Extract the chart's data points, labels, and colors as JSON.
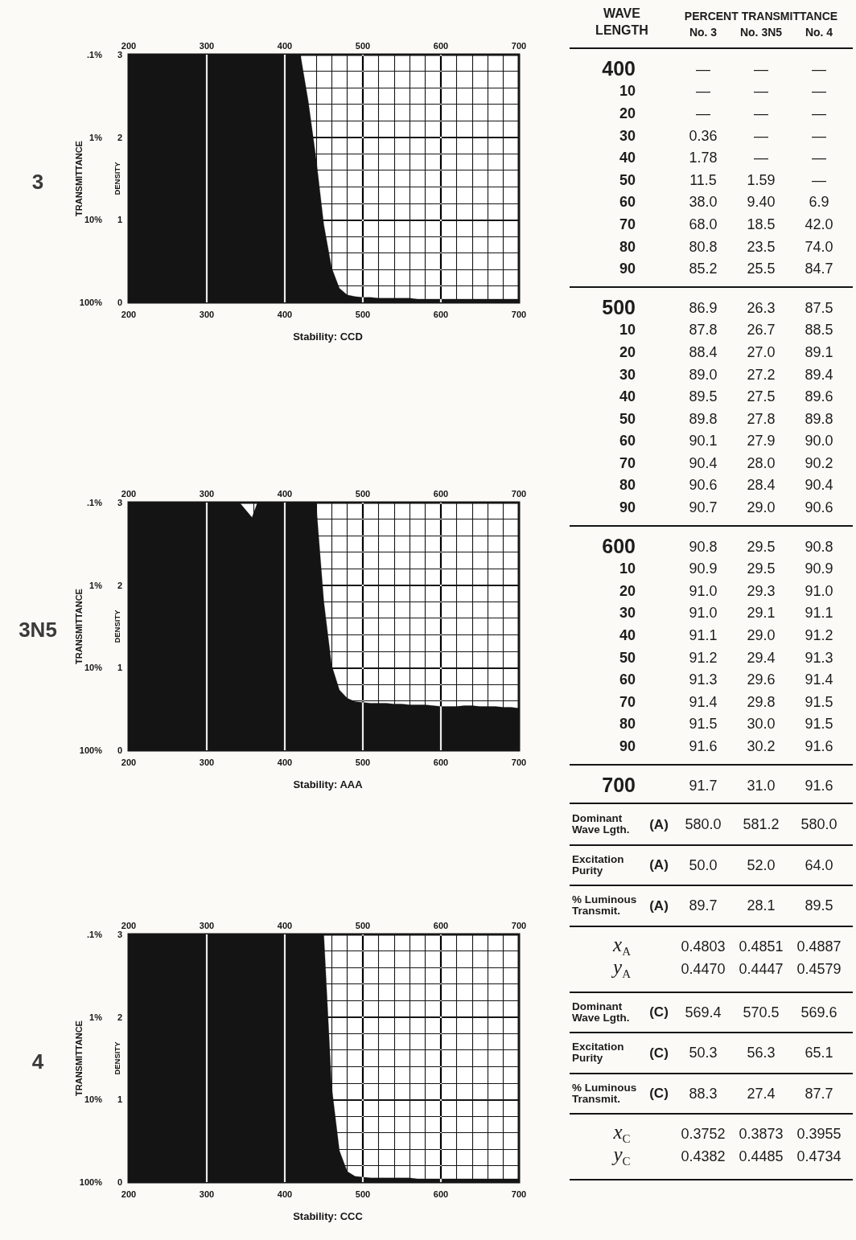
{
  "chart_data": [
    {
      "type": "area",
      "title": "3",
      "ylabel": "DENSITY",
      "y2label": "TRANSMITTANCE",
      "annotations": [
        "Stability: CCD"
      ],
      "x": [
        200,
        420,
        430,
        440,
        450,
        460,
        470,
        480,
        490,
        500,
        510,
        520,
        530,
        540,
        550,
        560,
        570,
        580,
        590,
        600,
        610,
        620,
        630,
        640,
        650,
        660,
        670,
        680,
        690,
        700
      ],
      "values": [
        3,
        3,
        2.44,
        1.75,
        0.94,
        0.42,
        0.17,
        0.09,
        0.07,
        0.06,
        0.06,
        0.05,
        0.05,
        0.05,
        0.05,
        0.05,
        0.04,
        0.04,
        0.04,
        0.04,
        0.04,
        0.04,
        0.04,
        0.04,
        0.04,
        0.04,
        0.04,
        0.04,
        0.04,
        0.04
      ],
      "color": "#141414",
      "xlim": [
        200,
        700
      ],
      "xticks": [
        200,
        300,
        400,
        500,
        600,
        700
      ],
      "x2lim": [
        200,
        700
      ],
      "x2ticks": [
        200,
        300,
        400,
        500,
        600,
        700
      ],
      "ylim": [
        0,
        3
      ],
      "yticks": [
        0,
        1,
        2,
        3
      ],
      "y2lim": [
        100,
        0.1
      ],
      "y2ticks": [
        {
          "value": 100,
          "label": "100%"
        },
        {
          "value": 10,
          "label": "10%"
        },
        {
          "value": 1,
          "label": "1%"
        },
        {
          "value": 0.1,
          "label": ".1%"
        }
      ],
      "log": "y2",
      "grid": true,
      "marker": "none"
    },
    {
      "type": "area",
      "title": "3N5",
      "ylabel": "DENSITY",
      "y2label": "TRANSMITTANCE",
      "annotations": [
        "Stability: AAA"
      ],
      "x": [
        200,
        342,
        358,
        365,
        440,
        450,
        460,
        470,
        480,
        490,
        500,
        510,
        520,
        530,
        540,
        550,
        560,
        570,
        580,
        590,
        600,
        610,
        620,
        630,
        640,
        650,
        660,
        670,
        680,
        690,
        700
      ],
      "values": [
        3,
        3,
        2.82,
        3,
        3,
        1.8,
        1.03,
        0.73,
        0.63,
        0.59,
        0.58,
        0.57,
        0.57,
        0.57,
        0.56,
        0.56,
        0.55,
        0.55,
        0.55,
        0.54,
        0.53,
        0.53,
        0.53,
        0.54,
        0.54,
        0.53,
        0.53,
        0.53,
        0.52,
        0.52,
        0.51
      ],
      "color": "#141414",
      "xlim": [
        200,
        700
      ],
      "xticks": [
        200,
        300,
        400,
        500,
        600,
        700
      ],
      "x2lim": [
        200,
        700
      ],
      "x2ticks": [
        200,
        300,
        400,
        500,
        600,
        700
      ],
      "ylim": [
        0,
        3
      ],
      "yticks": [
        0,
        1,
        2,
        3
      ],
      "y2lim": [
        100,
        0.1
      ],
      "y2ticks": [
        {
          "value": 100,
          "label": "100%"
        },
        {
          "value": 10,
          "label": "10%"
        },
        {
          "value": 1,
          "label": "1%"
        },
        {
          "value": 0.1,
          "label": ".1%"
        }
      ],
      "log": "y2",
      "grid": true,
      "marker": "none"
    },
    {
      "type": "area",
      "title": "4",
      "ylabel": "DENSITY",
      "y2label": "TRANSMITTANCE",
      "annotations": [
        "Stability: CCC"
      ],
      "x": [
        200,
        450,
        460,
        470,
        480,
        490,
        500,
        510,
        520,
        530,
        540,
        550,
        560,
        570,
        580,
        590,
        600,
        610,
        620,
        630,
        640,
        650,
        660,
        670,
        680,
        690,
        700
      ],
      "values": [
        3,
        3,
        1.16,
        0.38,
        0.13,
        0.07,
        0.06,
        0.05,
        0.05,
        0.05,
        0.05,
        0.05,
        0.05,
        0.04,
        0.04,
        0.04,
        0.04,
        0.04,
        0.04,
        0.04,
        0.04,
        0.04,
        0.04,
        0.04,
        0.04,
        0.04,
        0.04
      ],
      "color": "#141414",
      "xlim": [
        200,
        700
      ],
      "xticks": [
        200,
        300,
        400,
        500,
        600,
        700
      ],
      "x2lim": [
        200,
        700
      ],
      "x2ticks": [
        200,
        300,
        400,
        500,
        600,
        700
      ],
      "ylim": [
        0,
        3
      ],
      "yticks": [
        0,
        1,
        2,
        3
      ],
      "y2lim": [
        100,
        0.1
      ],
      "y2ticks": [
        {
          "value": 100,
          "label": "100%"
        },
        {
          "value": 10,
          "label": "10%"
        },
        {
          "value": 1,
          "label": "1%"
        },
        {
          "value": 0.1,
          "label": ".1%"
        }
      ],
      "log": "y2",
      "grid": true,
      "marker": "none"
    },
    {
      "type": "heatmap",
      "ylabel": "WAVE LENGTH",
      "xlabel": "PERCENT TRANSMITTANCE",
      "categories": [
        "No. 3",
        "No. 3N5",
        "No. 4"
      ],
      "y_categories": [
        "400",
        "10",
        "20",
        "30",
        "40",
        "50",
        "60",
        "70",
        "80",
        "90",
        "500",
        "10",
        "20",
        "30",
        "40",
        "50",
        "60",
        "70",
        "80",
        "90",
        "600",
        "10",
        "20",
        "30",
        "40",
        "50",
        "60",
        "70",
        "80",
        "90",
        "700"
      ],
      "cells": [
        [
          null,
          null,
          null
        ],
        [
          null,
          null,
          null
        ],
        [
          null,
          null,
          null
        ],
        [
          0.36,
          null,
          null
        ],
        [
          1.78,
          null,
          null
        ],
        [
          11.5,
          1.59,
          null
        ],
        [
          38,
          9.4,
          6.9
        ],
        [
          68,
          18.5,
          42
        ],
        [
          80.8,
          23.5,
          74
        ],
        [
          85.2,
          25.5,
          84.7
        ],
        [
          86.9,
          26.3,
          87.5
        ],
        [
          87.8,
          26.7,
          88.5
        ],
        [
          88.4,
          27,
          89.1
        ],
        [
          89,
          27.2,
          89.4
        ],
        [
          89.5,
          27.5,
          89.6
        ],
        [
          89.8,
          27.8,
          89.8
        ],
        [
          90.1,
          27.9,
          90
        ],
        [
          90.4,
          28,
          90.2
        ],
        [
          90.6,
          28.4,
          90.4
        ],
        [
          90.7,
          29,
          90.6
        ],
        [
          90.8,
          29.5,
          90.8
        ],
        [
          90.9,
          29.5,
          90.9
        ],
        [
          91,
          29.3,
          91
        ],
        [
          91,
          29.1,
          91.1
        ],
        [
          91.1,
          29,
          91.2
        ],
        [
          91.2,
          29.4,
          91.3
        ],
        [
          91.3,
          29.6,
          91.4
        ],
        [
          91.4,
          29.8,
          91.5
        ],
        [
          91.5,
          30,
          91.5
        ],
        [
          91.6,
          30.2,
          91.6
        ],
        [
          91.7,
          31,
          91.6
        ]
      ],
      "cell_labels": [
        [
          "—",
          "—",
          "—"
        ],
        [
          "—",
          "—",
          "—"
        ],
        [
          "—",
          "—",
          "—"
        ],
        [
          "0.36",
          "—",
          "—"
        ],
        [
          "1.78",
          "—",
          "—"
        ],
        [
          "11.5",
          "1.59",
          "—"
        ],
        [
          "38.0",
          "9.40",
          "6.9"
        ],
        [
          "68.0",
          "18.5",
          "42.0"
        ],
        [
          "80.8",
          "23.5",
          "74.0"
        ],
        [
          "85.2",
          "25.5",
          "84.7"
        ],
        [
          "86.9",
          "26.3",
          "87.5"
        ],
        [
          "87.8",
          "26.7",
          "88.5"
        ],
        [
          "88.4",
          "27.0",
          "89.1"
        ],
        [
          "89.0",
          "27.2",
          "89.4"
        ],
        [
          "89.5",
          "27.5",
          "89.6"
        ],
        [
          "89.8",
          "27.8",
          "89.8"
        ],
        [
          "90.1",
          "27.9",
          "90.0"
        ],
        [
          "90.4",
          "28.0",
          "90.2"
        ],
        [
          "90.6",
          "28.4",
          "90.4"
        ],
        [
          "90.7",
          "29.0",
          "90.6"
        ],
        [
          "90.8",
          "29.5",
          "90.8"
        ],
        [
          "90.9",
          "29.5",
          "90.9"
        ],
        [
          "91.0",
          "29.3",
          "91.0"
        ],
        [
          "91.0",
          "29.1",
          "91.1"
        ],
        [
          "91.1",
          "29.0",
          "91.2"
        ],
        [
          "91.2",
          "29.4",
          "91.3"
        ],
        [
          "91.3",
          "29.6",
          "91.4"
        ],
        [
          "91.4",
          "29.8",
          "91.5"
        ],
        [
          "91.5",
          "30.0",
          "91.5"
        ],
        [
          "91.6",
          "30.2",
          "91.6"
        ],
        [
          "91.7",
          "31.0",
          "91.6"
        ]
      ]
    },
    {
      "type": "heatmap",
      "categories": [
        null,
        null,
        null
      ],
      "y_categories": [
        "Dominant Wave Lgth.",
        "Excitation Purity",
        "% Luminous Transmit.",
        "x$_{A}$",
        "y$_{A}$",
        "Dominant Wave Lgth.",
        "Excitation Purity",
        "% Luminous Transmit.",
        "x$_{C}$",
        "y$_{C}$"
      ],
      "y2_categories": [
        "(A)",
        "(A)",
        "(A)",
        null,
        null,
        "(C)",
        "(C)",
        "(C)",
        null,
        null
      ],
      "cells": [
        [
          580,
          581.2,
          580
        ],
        [
          50,
          52,
          64
        ],
        [
          89.7,
          28.1,
          89.5
        ],
        [
          0.4803,
          0.4851,
          0.4887
        ],
        [
          0.447,
          0.4447,
          0.4579
        ],
        [
          569.4,
          570.5,
          569.6
        ],
        [
          50.3,
          56.3,
          65.1
        ],
        [
          88.3,
          27.4,
          87.7
        ],
        [
          0.3752,
          0.3873,
          0.3955
        ],
        [
          0.4382,
          0.4485,
          0.4734
        ]
      ],
      "cell_labels": [
        [
          "580.0",
          "581.2",
          "580.0"
        ],
        [
          "50.0",
          "52.0",
          "64.0"
        ],
        [
          "89.7",
          "28.1",
          "89.5"
        ],
        [
          "0.4803",
          "0.4851",
          "0.4887"
        ],
        [
          "0.4470",
          "0.4447",
          "0.4579"
        ],
        [
          "569.4",
          "570.5",
          "569.6"
        ],
        [
          "50.3",
          "56.3",
          "65.1"
        ],
        [
          "88.3",
          "27.4",
          "87.7"
        ],
        [
          "0.3752",
          "0.3873",
          "0.3955"
        ],
        [
          "0.4382",
          "0.4485",
          "0.4734"
        ]
      ]
    }
  ]
}
